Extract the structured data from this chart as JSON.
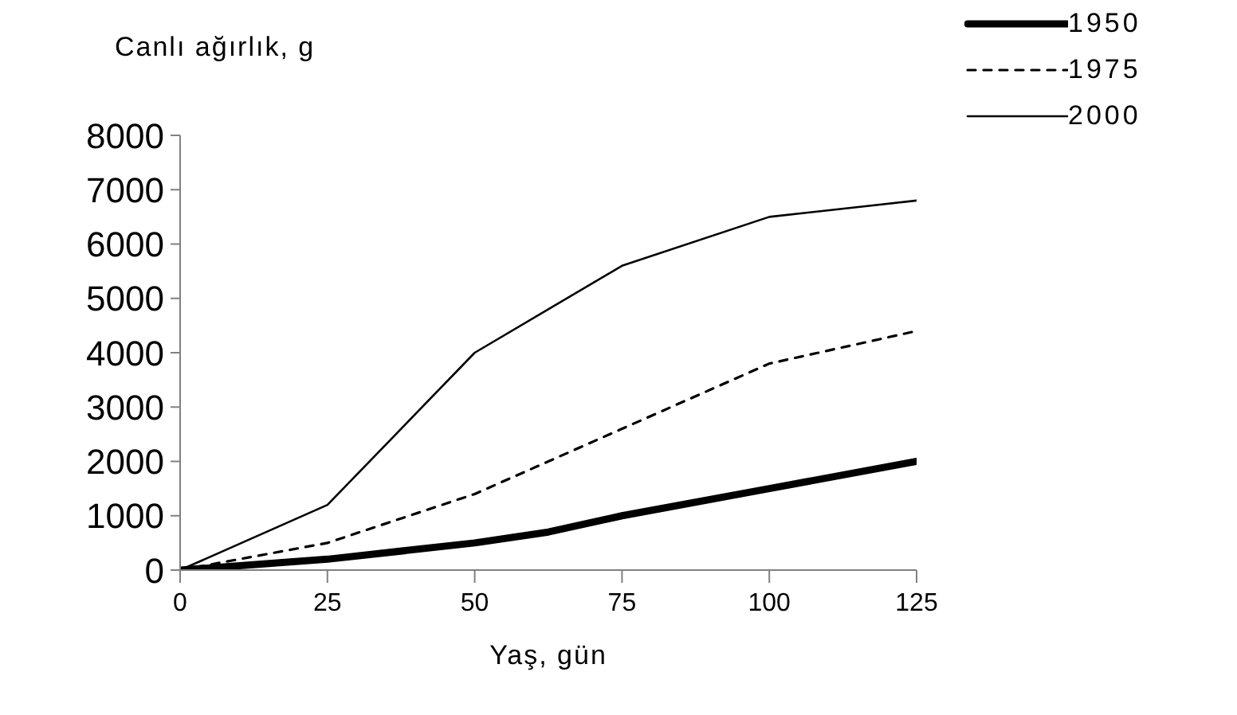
{
  "chart_data": {
    "type": "line",
    "ylabel": "Canlı ağırlık, g",
    "xlabel": "Yaş, gün",
    "x": [
      0,
      25,
      50,
      62.5,
      75,
      100,
      125
    ],
    "xlim": [
      0,
      125
    ],
    "xticks": [
      0,
      25,
      50,
      75,
      100,
      125
    ],
    "ylim": [
      0,
      8000
    ],
    "yticks": [
      0,
      1000,
      2000,
      3000,
      4000,
      5000,
      6000,
      7000,
      8000
    ],
    "grid": false,
    "legend": "top right",
    "marker": "none",
    "series": [
      {
        "name": "1950",
        "color": "#000000",
        "line_style": "solid",
        "values": [
          0,
          200,
          500,
          700,
          1000,
          1500,
          2000
        ]
      },
      {
        "name": "1975",
        "color": "#000000",
        "line_style": "dashed",
        "values": [
          0,
          500,
          1400,
          2000,
          2600,
          3800,
          4400
        ]
      },
      {
        "name": "2000",
        "color": "#000000",
        "line_style": "solid",
        "values": [
          0,
          1200,
          4000,
          4800,
          5600,
          6500,
          6800
        ]
      }
    ]
  }
}
